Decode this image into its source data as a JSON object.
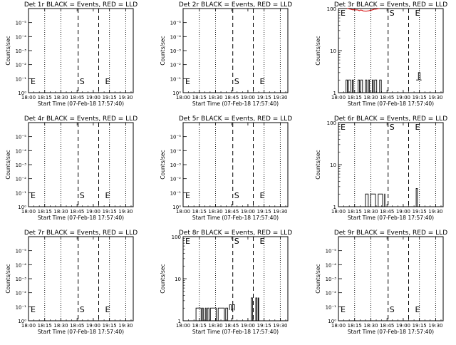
{
  "figure": {
    "x_label": "Start Time (07-Feb-18 17:57:40)",
    "y_label": "Counts/sec",
    "x_ticks": [
      "18:00",
      "18:15",
      "18:30",
      "18:45",
      "19:00",
      "19:15",
      "19:30"
    ],
    "y_ticks_small": [
      "10⁰",
      "10⁻¹",
      "10⁻²",
      "10⁻³",
      "10⁻⁴",
      "10⁻⁵"
    ],
    "y_ticks_large": [
      "1",
      "10",
      "100"
    ],
    "marker_start": "S",
    "marker_end": "E",
    "colors": {
      "events": "#000000",
      "lld": "#d40000",
      "frame": "#000000"
    }
  },
  "chart_data": [
    {
      "type": "line",
      "title": "Det 1r BLACK = Events, RED = LLD",
      "scale": "small",
      "xlim": [
        "18:00",
        "19:37"
      ],
      "ylim": [
        0,
        6
      ],
      "events": [],
      "lld": []
    },
    {
      "type": "line",
      "title": "Det 2r BLACK = Events, RED = LLD",
      "scale": "small",
      "xlim": [
        "18:00",
        "19:37"
      ],
      "ylim": [
        0,
        6
      ],
      "events": [],
      "lld": []
    },
    {
      "type": "line",
      "title": "Det 3r BLACK = Events, RED = LLD",
      "scale": "log",
      "xlim": [
        "18:00",
        "19:37"
      ],
      "ylim": [
        1,
        100
      ],
      "events": [
        {
          "t0": "18:07",
          "t1": "18:40",
          "low": 1,
          "high": 2
        },
        {
          "t0": "19:12",
          "t1": "19:17",
          "low": 2,
          "high": 3
        }
      ],
      "lld": [
        {
          "t0": "18:08",
          "t1": "18:38",
          "low": 86,
          "high": 100
        }
      ]
    },
    {
      "type": "line",
      "title": "Det 4r BLACK = Events, RED = LLD",
      "scale": "small",
      "xlim": [
        "18:00",
        "19:37"
      ],
      "ylim": [
        0,
        6
      ],
      "events": [],
      "lld": []
    },
    {
      "type": "line",
      "title": "Det 5r BLACK = Events, RED = LLD",
      "scale": "small",
      "xlim": [
        "18:00",
        "19:37"
      ],
      "ylim": [
        0,
        6
      ],
      "events": [],
      "lld": []
    },
    {
      "type": "line",
      "title": "Det 6r BLACK = Events, RED = LLD",
      "scale": "log",
      "xlim": [
        "18:00",
        "19:37"
      ],
      "ylim": [
        1,
        100
      ],
      "events": [
        {
          "t0": "18:25",
          "t1": "18:43",
          "low": 1,
          "high": 2
        },
        {
          "t0": "19:09",
          "t1": "19:15",
          "low": 1,
          "high": 2.7
        }
      ],
      "lld": []
    },
    {
      "type": "line",
      "title": "Det 7r BLACK = Events, RED = LLD",
      "scale": "small",
      "xlim": [
        "18:00",
        "19:37"
      ],
      "ylim": [
        0,
        6
      ],
      "events": [],
      "lld": []
    },
    {
      "type": "line",
      "title": "Det 8r BLACK = Events, RED = LLD",
      "scale": "log",
      "xlim": [
        "18:00",
        "19:37"
      ],
      "ylim": [
        1,
        100
      ],
      "events": [
        {
          "t0": "18:07",
          "t1": "18:42",
          "low": 1,
          "high": 2
        },
        {
          "t0": "18:43",
          "t1": "18:48",
          "low": 1.8,
          "high": 2.4
        },
        {
          "t0": "19:03",
          "t1": "19:10",
          "low": 1,
          "high": 3.5
        }
      ],
      "lld": []
    },
    {
      "type": "line",
      "title": "Det 9r BLACK = Events, RED = LLD",
      "scale": "small",
      "xlim": [
        "18:00",
        "19:37"
      ],
      "ylim": [
        0,
        6
      ],
      "events": [],
      "lld": []
    }
  ]
}
